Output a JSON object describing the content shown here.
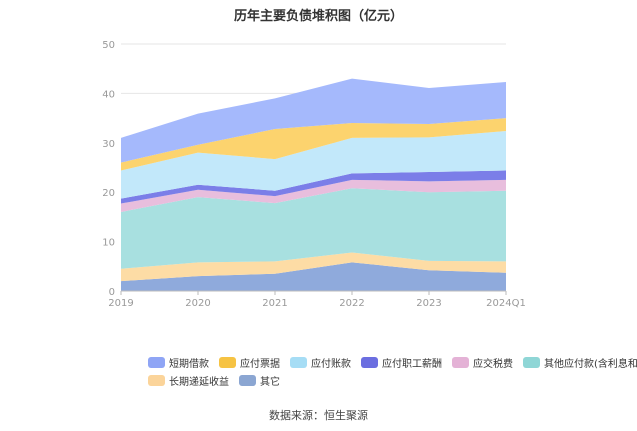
{
  "title": "历年主要负债堆积图（亿元）",
  "source": "数据来源：恒生聚源",
  "chart_data": {
    "type": "area",
    "stacked": true,
    "title": "历年主要负债堆积图（亿元）",
    "x": [
      "2019",
      "2020",
      "2021",
      "2022",
      "2023",
      "2024Q1"
    ],
    "ylim": [
      0,
      50
    ],
    "yticks": [
      "0",
      "10",
      "20",
      "30",
      "40",
      "50"
    ],
    "grid": true,
    "legend_position": "bottom",
    "series": [
      {
        "name": "其它",
        "color": "#8FAADC",
        "values": [
          2.0,
          3.0,
          3.5,
          5.8,
          4.2,
          3.7
        ]
      },
      {
        "name": "长期递延收益",
        "color": "#FDDCA5",
        "values": [
          2.5,
          2.8,
          2.5,
          2.0,
          1.9,
          2.3
        ]
      },
      {
        "name": "其他应付款(含利息和股利)",
        "color": "#A8E0E0",
        "values": [
          11.5,
          13.2,
          11.8,
          13.0,
          13.9,
          14.3
        ]
      },
      {
        "name": "应交税费",
        "color": "#E8BEDD",
        "values": [
          1.7,
          1.5,
          1.4,
          1.7,
          2.2,
          2.2
        ]
      },
      {
        "name": "应付职工薪酬",
        "color": "#7B7EE8",
        "values": [
          1.0,
          1.0,
          1.1,
          1.3,
          1.9,
          1.9
        ]
      },
      {
        "name": "应付账款",
        "color": "#C2E8FA",
        "values": [
          5.7,
          6.5,
          6.4,
          7.2,
          7.0,
          8.0
        ]
      },
      {
        "name": "应付票据",
        "color": "#FCD36E",
        "values": [
          1.6,
          1.6,
          6.1,
          3.0,
          2.7,
          2.6
        ]
      },
      {
        "name": "短期借款",
        "color": "#A5B9FC",
        "values": [
          5.0,
          6.3,
          6.2,
          9.0,
          7.3,
          7.3
        ]
      }
    ]
  },
  "legend": [
    {
      "name": "短期借款",
      "color": "#8FA5F5"
    },
    {
      "name": "应付票据",
      "color": "#F6C343"
    },
    {
      "name": "应付账款",
      "color": "#A6DDF5"
    },
    {
      "name": "应付职工薪酬",
      "color": "#6B6EE0"
    },
    {
      "name": "应交税费",
      "color": "#E4B2D6"
    },
    {
      "name": "其他应付款(含利息和股利)",
      "color": "#8FD6D6"
    },
    {
      "name": "长期递延收益",
      "color": "#FBD49A"
    },
    {
      "name": "其它",
      "color": "#8BA6D2"
    }
  ]
}
